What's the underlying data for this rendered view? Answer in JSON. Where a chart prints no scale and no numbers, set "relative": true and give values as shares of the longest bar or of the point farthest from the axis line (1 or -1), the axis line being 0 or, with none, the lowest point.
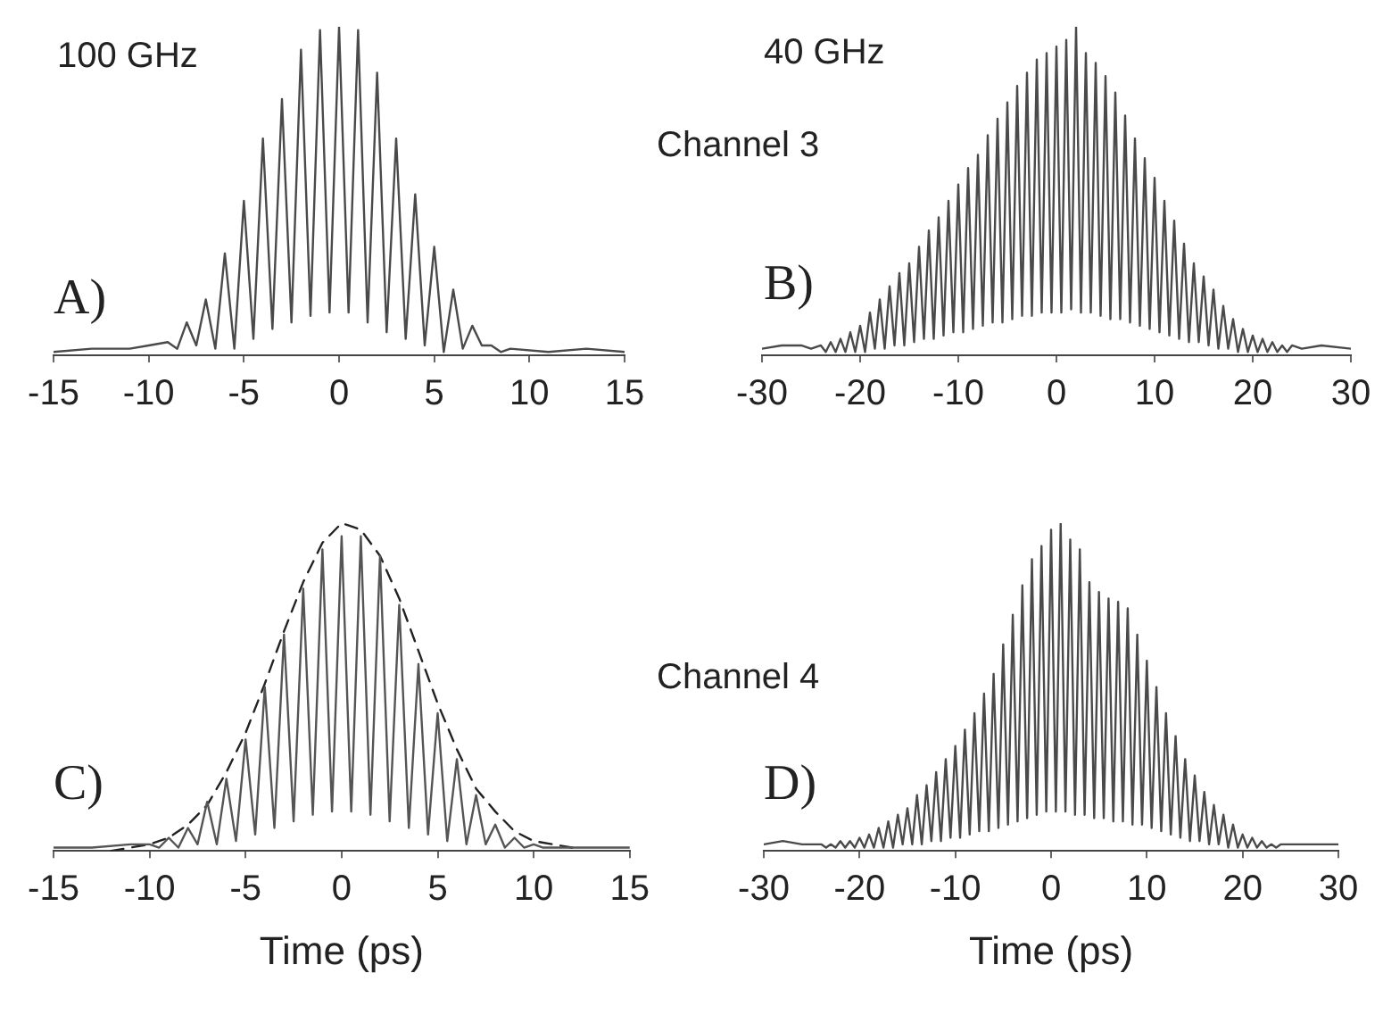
{
  "chart_data": [
    {
      "type": "line",
      "relative": true,
      "xlim": [
        -15,
        15
      ],
      "xticks": [
        -15,
        -10,
        -5,
        0,
        5,
        10,
        15
      ],
      "annotations": [
        "100 GHz",
        "A)"
      ],
      "series": [
        {
          "color": "#4a4a4a",
          "x": [
            -15,
            -13,
            -11,
            -10,
            -9,
            -8.5,
            -8,
            -7.5,
            -7,
            -6.5,
            -6,
            -5.5,
            -5,
            -4.5,
            -4,
            -3.5,
            -3,
            -2.5,
            -2,
            -1.5,
            -1,
            -0.5,
            0,
            0.5,
            1,
            1.5,
            2,
            2.5,
            3,
            3.5,
            4,
            4.5,
            5,
            5.5,
            6,
            6.5,
            7,
            7.5,
            8,
            8.5,
            9,
            11,
            13,
            15
          ],
          "values": [
            0.01,
            0.02,
            0.02,
            0.03,
            0.04,
            0.02,
            0.1,
            0.03,
            0.17,
            0.02,
            0.31,
            0.02,
            0.47,
            0.05,
            0.66,
            0.08,
            0.78,
            0.1,
            0.93,
            0.12,
            0.99,
            0.13,
            1,
            0.13,
            0.99,
            0.1,
            0.86,
            0.07,
            0.66,
            0.05,
            0.49,
            0.03,
            0.33,
            0.01,
            0.2,
            0.02,
            0.09,
            0.03,
            0.03,
            0.01,
            0.02,
            0.01,
            0.02,
            0.01
          ]
        }
      ]
    },
    {
      "type": "line",
      "relative": true,
      "xlim": [
        -30,
        30
      ],
      "xticks": [
        -30,
        -20,
        -10,
        0,
        10,
        20,
        30
      ],
      "annotations": [
        "40 GHz",
        "Channel 3",
        "B)"
      ],
      "series": [
        {
          "color": "#4a4a4a",
          "x": [
            -30,
            -28,
            -26,
            -25,
            -24,
            -23.5,
            -23,
            -22.5,
            -22,
            -21.5,
            -21,
            -20.5,
            -20,
            -19.5,
            -19,
            -18.5,
            -18,
            -17.5,
            -17,
            -16.5,
            -16,
            -15.5,
            -15,
            -14.5,
            -14,
            -13.5,
            -13,
            -12.5,
            -12,
            -11.5,
            -11,
            -10.5,
            -10,
            -9.5,
            -9,
            -8.5,
            -8,
            -7.5,
            -7,
            -6.5,
            -6,
            -5.5,
            -5,
            -4.5,
            -4,
            -3.5,
            -3,
            -2.5,
            -2,
            -1.5,
            -1,
            -0.5,
            0,
            0.5,
            1,
            1.5,
            2,
            2.5,
            3,
            3.5,
            4,
            4.5,
            5,
            5.5,
            6,
            6.5,
            7,
            7.5,
            8,
            8.5,
            9,
            9.5,
            10,
            10.5,
            11,
            11.5,
            12,
            12.5,
            13,
            13.5,
            14,
            14.5,
            15,
            15.5,
            16,
            16.5,
            17,
            17.5,
            18,
            18.5,
            19,
            19.5,
            20,
            20.5,
            21,
            21.5,
            22,
            22.5,
            23,
            23.5,
            24,
            25,
            27,
            30
          ],
          "values": [
            0.02,
            0.03,
            0.03,
            0.02,
            0.03,
            0.01,
            0.04,
            0.01,
            0.05,
            0.01,
            0.07,
            0.01,
            0.09,
            0.01,
            0.13,
            0.02,
            0.17,
            0.02,
            0.21,
            0.03,
            0.25,
            0.03,
            0.28,
            0.04,
            0.33,
            0.05,
            0.38,
            0.05,
            0.42,
            0.06,
            0.47,
            0.07,
            0.52,
            0.07,
            0.57,
            0.08,
            0.61,
            0.09,
            0.67,
            0.1,
            0.72,
            0.1,
            0.77,
            0.11,
            0.82,
            0.12,
            0.86,
            0.12,
            0.9,
            0.13,
            0.92,
            0.13,
            0.94,
            0.13,
            0.96,
            0.14,
            1,
            0.13,
            0.92,
            0.13,
            0.89,
            0.12,
            0.85,
            0.11,
            0.8,
            0.11,
            0.73,
            0.1,
            0.66,
            0.09,
            0.6,
            0.08,
            0.54,
            0.07,
            0.47,
            0.06,
            0.41,
            0.05,
            0.34,
            0.04,
            0.28,
            0.04,
            0.24,
            0.03,
            0.2,
            0.02,
            0.15,
            0.02,
            0.11,
            0.01,
            0.08,
            0.01,
            0.06,
            0.01,
            0.05,
            0.01,
            0.04,
            0.01,
            0.03,
            0.01,
            0.03,
            0.02,
            0.03,
            0.02
          ]
        }
      ]
    },
    {
      "type": "line",
      "relative": true,
      "xlim": [
        -15,
        15
      ],
      "xticks": [
        -15,
        -10,
        -5,
        0,
        5,
        10,
        15
      ],
      "xlabel": "Time (ps)",
      "annotations": [
        "C)"
      ],
      "series": [
        {
          "color": "#555555",
          "x": [
            -15,
            -13,
            -11,
            -10,
            -9.5,
            -9,
            -8.5,
            -8,
            -7.5,
            -7,
            -6.5,
            -6,
            -5.5,
            -5,
            -4.5,
            -4,
            -3.5,
            -3,
            -2.5,
            -2,
            -1.5,
            -1,
            -0.5,
            0,
            0.5,
            1,
            1.5,
            2,
            2.5,
            3,
            3.5,
            4,
            4.5,
            5,
            5.5,
            6,
            6.5,
            7,
            7.5,
            8,
            8.5,
            9,
            9.5,
            10,
            10.5,
            12,
            15
          ],
          "values": [
            0.01,
            0.01,
            0.02,
            0.02,
            0.01,
            0.04,
            0.01,
            0.07,
            0.02,
            0.15,
            0.02,
            0.22,
            0.03,
            0.34,
            0.05,
            0.5,
            0.07,
            0.66,
            0.09,
            0.8,
            0.11,
            0.92,
            0.12,
            0.96,
            0.12,
            0.96,
            0.11,
            0.9,
            0.09,
            0.75,
            0.07,
            0.57,
            0.05,
            0.42,
            0.03,
            0.28,
            0.02,
            0.17,
            0.02,
            0.08,
            0.01,
            0.04,
            0.01,
            0.02,
            0.01,
            0.01,
            0.01
          ]
        },
        {
          "color": "#222222",
          "line_style": "dashed",
          "x": [
            -12,
            -11,
            -10,
            -9,
            -8,
            -7,
            -6,
            -5,
            -4,
            -3,
            -2,
            -1,
            0,
            1,
            2,
            3,
            4,
            5,
            6,
            7,
            8,
            9,
            10,
            11,
            12
          ],
          "values": [
            0,
            0.01,
            0.02,
            0.04,
            0.08,
            0.14,
            0.24,
            0.36,
            0.51,
            0.67,
            0.82,
            0.94,
            1,
            0.98,
            0.9,
            0.77,
            0.61,
            0.45,
            0.31,
            0.19,
            0.12,
            0.06,
            0.03,
            0.02,
            0.01
          ]
        }
      ]
    },
    {
      "type": "line",
      "relative": true,
      "xlim": [
        -30,
        30
      ],
      "xticks": [
        -30,
        -20,
        -10,
        0,
        10,
        20,
        30
      ],
      "xlabel": "Time (ps)",
      "annotations": [
        "Channel 4",
        "D)"
      ],
      "series": [
        {
          "color": "#4a4a4a",
          "x": [
            -30,
            -28,
            -26,
            -25,
            -24,
            -23.5,
            -23,
            -22.5,
            -22,
            -21.5,
            -21,
            -20.5,
            -20,
            -19.5,
            -19,
            -18.5,
            -18,
            -17.5,
            -17,
            -16.5,
            -16,
            -15.5,
            -15,
            -14.5,
            -14,
            -13.5,
            -13,
            -12.5,
            -12,
            -11.5,
            -11,
            -10.5,
            -10,
            -9.5,
            -9,
            -8.5,
            -8,
            -7.5,
            -7,
            -6.5,
            -6,
            -5.5,
            -5,
            -4.5,
            -4,
            -3.5,
            -3,
            -2.5,
            -2,
            -1.5,
            -1,
            -0.5,
            0,
            0.5,
            1,
            1.5,
            2,
            2.5,
            3,
            3.5,
            4,
            4.5,
            5,
            5.5,
            6,
            6.5,
            7,
            7.5,
            8,
            8.5,
            9,
            9.5,
            10,
            10.5,
            11,
            11.5,
            12,
            12.5,
            13,
            13.5,
            14,
            14.5,
            15,
            15.5,
            16,
            16.5,
            17,
            17.5,
            18,
            18.5,
            19,
            19.5,
            20,
            20.5,
            21,
            21.5,
            22,
            22.5,
            23,
            23.5,
            24,
            25,
            27,
            30
          ],
          "values": [
            0.02,
            0.03,
            0.02,
            0.02,
            0.02,
            0.01,
            0.02,
            0.01,
            0.03,
            0.01,
            0.03,
            0.01,
            0.04,
            0.01,
            0.05,
            0.01,
            0.07,
            0.01,
            0.09,
            0.01,
            0.11,
            0.02,
            0.13,
            0.02,
            0.17,
            0.02,
            0.2,
            0.03,
            0.24,
            0.03,
            0.28,
            0.04,
            0.32,
            0.04,
            0.37,
            0.05,
            0.42,
            0.06,
            0.48,
            0.06,
            0.54,
            0.07,
            0.63,
            0.08,
            0.72,
            0.09,
            0.81,
            0.1,
            0.89,
            0.11,
            0.93,
            0.12,
            0.98,
            0.12,
            1,
            0.12,
            0.95,
            0.11,
            0.92,
            0.11,
            0.82,
            0.1,
            0.79,
            0.1,
            0.77,
            0.09,
            0.76,
            0.09,
            0.74,
            0.08,
            0.66,
            0.08,
            0.58,
            0.07,
            0.5,
            0.06,
            0.42,
            0.05,
            0.35,
            0.04,
            0.28,
            0.03,
            0.23,
            0.03,
            0.18,
            0.02,
            0.14,
            0.02,
            0.11,
            0.01,
            0.08,
            0.01,
            0.05,
            0.01,
            0.04,
            0.01,
            0.03,
            0.01,
            0.02,
            0.01,
            0.02,
            0.02,
            0.02,
            0.02
          ]
        }
      ]
    }
  ]
}
